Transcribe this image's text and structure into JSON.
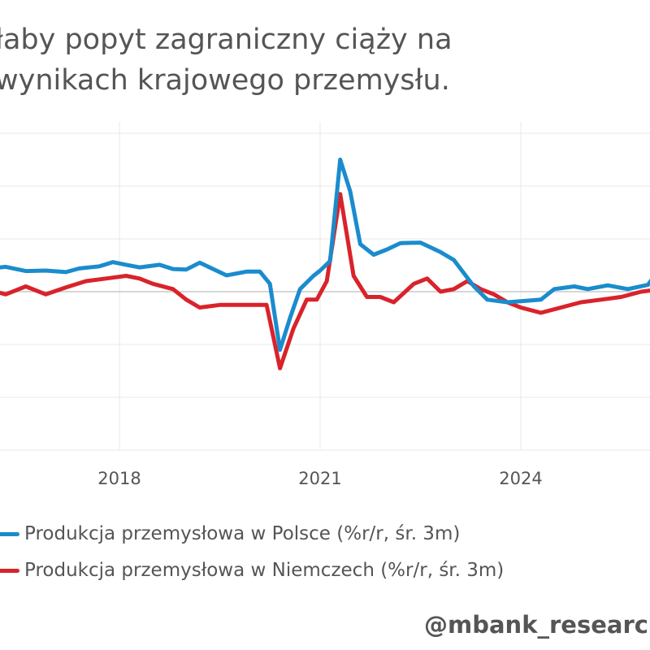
{
  "title": {
    "line1": "łaby popyt zagraniczny ciąży na",
    "line2": "wynikach krajowego przemysłu."
  },
  "watermark": "@mbank_researc",
  "colors": {
    "poland": "#1a8ccd",
    "germany": "#d9232b",
    "grid": "#e8e8e8",
    "zero": "#c8c8c8"
  },
  "chart_data": {
    "type": "line",
    "xlabel": "",
    "ylabel": "",
    "x_ticks": [
      "2018",
      "2021",
      "2024"
    ],
    "grid": true,
    "legend_position": "bottom",
    "series": [
      {
        "name": "Produkcja przemysłowa w Polsce (%r/r, śr. 3m)",
        "color": "#1a8ccd",
        "points": [
          [
            2016.0,
            4.3
          ],
          [
            2016.3,
            4.7
          ],
          [
            2016.6,
            3.9
          ],
          [
            2016.9,
            4.0
          ],
          [
            2017.2,
            3.7
          ],
          [
            2017.4,
            4.4
          ],
          [
            2017.7,
            4.8
          ],
          [
            2017.9,
            5.6
          ],
          [
            2018.1,
            5.1
          ],
          [
            2018.3,
            4.6
          ],
          [
            2018.6,
            5.1
          ],
          [
            2018.8,
            4.3
          ],
          [
            2019.0,
            4.2
          ],
          [
            2019.2,
            5.5
          ],
          [
            2019.4,
            4.3
          ],
          [
            2019.6,
            3.1
          ],
          [
            2019.9,
            3.8
          ],
          [
            2020.1,
            3.8
          ],
          [
            2020.25,
            1.5
          ],
          [
            2020.4,
            -11.0
          ],
          [
            2020.55,
            -5.0
          ],
          [
            2020.7,
            0.5
          ],
          [
            2020.9,
            3.0
          ],
          [
            2021.0,
            4.0
          ],
          [
            2021.15,
            5.8
          ],
          [
            2021.3,
            25.0
          ],
          [
            2021.45,
            19.0
          ],
          [
            2021.6,
            9.0
          ],
          [
            2021.8,
            7.0
          ],
          [
            2022.0,
            8.0
          ],
          [
            2022.2,
            9.2
          ],
          [
            2022.5,
            9.3
          ],
          [
            2022.8,
            7.5
          ],
          [
            2023.0,
            6.0
          ],
          [
            2023.3,
            1.0
          ],
          [
            2023.5,
            -1.5
          ],
          [
            2023.8,
            -2.0
          ],
          [
            2024.0,
            -1.8
          ],
          [
            2024.3,
            -1.5
          ],
          [
            2024.5,
            0.5
          ],
          [
            2024.8,
            1.0
          ],
          [
            2025.0,
            0.5
          ],
          [
            2025.3,
            1.2
          ],
          [
            2025.6,
            0.5
          ],
          [
            2025.9,
            1.3
          ],
          [
            2026.0,
            3.0
          ],
          [
            2026.3,
            2.0
          ]
        ]
      },
      {
        "name": "Produkcja przemysłowa w Niemczech (%r/r, śr. 3m)",
        "color": "#d9232b",
        "points": [
          [
            2016.0,
            0.5
          ],
          [
            2016.3,
            -0.5
          ],
          [
            2016.6,
            1.0
          ],
          [
            2016.9,
            -0.5
          ],
          [
            2017.2,
            0.8
          ],
          [
            2017.5,
            2.0
          ],
          [
            2017.8,
            2.5
          ],
          [
            2018.1,
            3.0
          ],
          [
            2018.3,
            2.5
          ],
          [
            2018.5,
            1.5
          ],
          [
            2018.8,
            0.5
          ],
          [
            2019.0,
            -1.5
          ],
          [
            2019.2,
            -3.0
          ],
          [
            2019.5,
            -2.5
          ],
          [
            2019.8,
            -2.5
          ],
          [
            2020.0,
            -2.5
          ],
          [
            2020.2,
            -2.5
          ],
          [
            2020.4,
            -14.5
          ],
          [
            2020.6,
            -7.0
          ],
          [
            2020.8,
            -1.5
          ],
          [
            2020.95,
            -1.5
          ],
          [
            2021.1,
            2.0
          ],
          [
            2021.3,
            18.5
          ],
          [
            2021.5,
            3.0
          ],
          [
            2021.7,
            -1.0
          ],
          [
            2021.9,
            -1.0
          ],
          [
            2022.1,
            -2.0
          ],
          [
            2022.4,
            1.5
          ],
          [
            2022.6,
            2.5
          ],
          [
            2022.8,
            0.0
          ],
          [
            2023.0,
            0.5
          ],
          [
            2023.2,
            2.0
          ],
          [
            2023.4,
            0.5
          ],
          [
            2023.6,
            -0.5
          ],
          [
            2023.8,
            -2.0
          ],
          [
            2024.0,
            -3.0
          ],
          [
            2024.3,
            -4.0
          ],
          [
            2024.6,
            -3.0
          ],
          [
            2024.9,
            -2.0
          ],
          [
            2025.2,
            -1.5
          ],
          [
            2025.5,
            -1.0
          ],
          [
            2025.8,
            0.0
          ],
          [
            2026.1,
            0.5
          ]
        ]
      }
    ]
  }
}
